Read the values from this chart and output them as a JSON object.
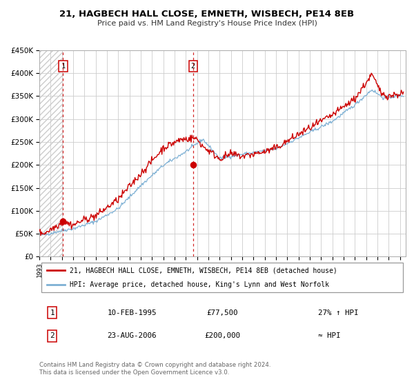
{
  "title": "21, HAGBECH HALL CLOSE, EMNETH, WISBECH, PE14 8EB",
  "subtitle": "Price paid vs. HM Land Registry's House Price Index (HPI)",
  "red_label": "21, HAGBECH HALL CLOSE, EMNETH, WISBECH, PE14 8EB (detached house)",
  "blue_label": "HPI: Average price, detached house, King's Lynn and West Norfolk",
  "point1_date": "10-FEB-1995",
  "point1_price": 77500,
  "point1_price_str": "£77,500",
  "point1_note": "27% ↑ HPI",
  "point2_date": "23-AUG-2006",
  "point2_price": 200000,
  "point2_price_str": "£200,000",
  "point2_note": "≈ HPI",
  "vline1_x": 1995.11,
  "vline2_x": 2006.64,
  "point1_num_label": "1",
  "point2_num_label": "2",
  "copyright_text": "Contains HM Land Registry data © Crown copyright and database right 2024.\nThis data is licensed under the Open Government Licence v3.0.",
  "ylim": [
    0,
    450000
  ],
  "xlim_start": 1993.0,
  "xlim_end": 2025.5,
  "background_color": "#ffffff",
  "plot_bg_color": "#ffffff",
  "grid_color": "#cccccc",
  "red_color": "#cc0000",
  "blue_color": "#7db0d4",
  "vline_color": "#cc0000",
  "hatch_color": "#dddddd"
}
